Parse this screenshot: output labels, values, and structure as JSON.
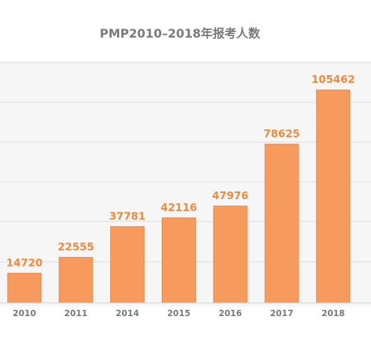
{
  "chart_data": {
    "type": "bar",
    "title": "PMP2010–2018年报考人数",
    "categories": [
      "2010",
      "2011",
      "2014",
      "2015",
      "2016",
      "2017",
      "2018"
    ],
    "values": [
      14720,
      22555,
      37781,
      42116,
      47976,
      78625,
      105462
    ],
    "xlabel": "",
    "ylabel": "",
    "ylim": [
      0,
      120000
    ],
    "grid": true,
    "legend": "none",
    "colors": {
      "bar": "#f79a5d",
      "bar_edge": "#e8874a",
      "value_label": "#f08a3c",
      "grid": "#dcdcdc",
      "text": "#7a7a7a",
      "band": "#f6f6f6"
    }
  }
}
